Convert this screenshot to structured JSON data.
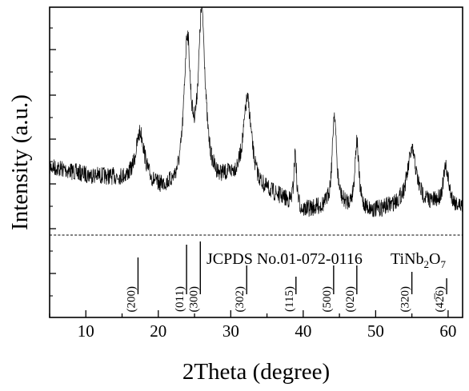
{
  "chart_data": {
    "type": "line",
    "title": "",
    "xlabel": "2Theta (degree)",
    "ylabel": "Intensity (a.u.)",
    "xlim": [
      5,
      62
    ],
    "x_ticks": [
      10,
      20,
      30,
      40,
      50,
      60
    ],
    "y_ticks_visible_labels": false,
    "legend": "none",
    "series": [
      {
        "peaks": [
          {
            "x": 17.5,
            "height": 0.3
          },
          {
            "x": 24.0,
            "height": 0.85
          },
          {
            "x": 26.0,
            "height": 1.0
          },
          {
            "x": 32.3,
            "height": 0.5
          },
          {
            "x": 38.9,
            "height": 0.32
          },
          {
            "x": 44.3,
            "height": 0.55
          },
          {
            "x": 47.4,
            "height": 0.4
          },
          {
            "x": 55.0,
            "height": 0.3
          },
          {
            "x": 59.7,
            "height": 0.22
          }
        ]
      }
    ],
    "reference": {
      "label_jcpds": "JCPDS No.01-072-0116",
      "label_compound_main": "TiNb",
      "label_sub1": "2",
      "label_mid": "O",
      "label_sub2": "7",
      "lines": [
        {
          "x": 17.2,
          "rel": 0.46,
          "hkl": "(200)"
        },
        {
          "x": 23.9,
          "rel": 0.62,
          "hkl": "(011)"
        },
        {
          "x": 25.8,
          "rel": 0.66,
          "hkl": "(300)"
        },
        {
          "x": 32.2,
          "rel": 0.36,
          "hkl": "(302)"
        },
        {
          "x": 39.0,
          "rel": 0.22,
          "hkl": "(115)"
        },
        {
          "x": 44.2,
          "rel": 0.36,
          "hkl": "(500)"
        },
        {
          "x": 47.4,
          "rel": 0.36,
          "hkl": "(020)"
        },
        {
          "x": 55.0,
          "rel": 0.28,
          "hkl": "(320)"
        },
        {
          "x": 59.8,
          "rel": 0.2,
          "hkl": "(42̅6)"
        }
      ]
    }
  }
}
